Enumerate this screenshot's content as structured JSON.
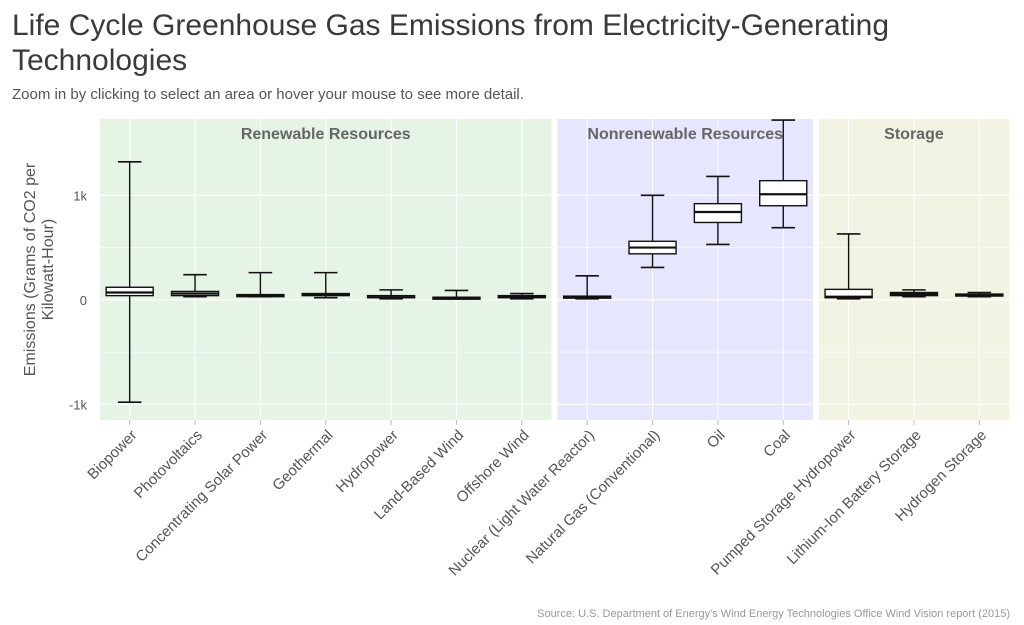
{
  "title": "Life Cycle Greenhouse Gas Emissions from Electricity-Generating Technologies",
  "subtitle": "Zoom in by clicking to select an area or hover your mouse to see more detail.",
  "source": "Source: U.S. Department of Energy's Wind Energy Technologies Office Wind Vision report (2015)",
  "colors": {
    "renewable": "#e5f4e5",
    "nonrenewable": "#e6e6ff",
    "storage": "#f3f3e4",
    "box_fill": "#ffffff",
    "box_stroke": "#111111"
  },
  "chart_data": {
    "type": "boxplot",
    "ylabel": "Emissions (Grams of CO2 per Kilowatt-Hour)",
    "ylim": [
      -1150,
      1730
    ],
    "yticks": [
      -1000,
      0,
      1000
    ],
    "ytick_labels": [
      "-1k",
      "0",
      "1k"
    ],
    "grid": true,
    "groups": [
      {
        "name": "Renewable Resources",
        "color_key": "renewable",
        "start": 0,
        "end": 6
      },
      {
        "name": "Nonrenewable Resources",
        "color_key": "nonrenewable",
        "start": 7,
        "end": 10
      },
      {
        "name": "Storage",
        "color_key": "storage",
        "start": 11,
        "end": 13
      }
    ],
    "categories": [
      "Biopower",
      "Photovoltaics",
      "Concentrating Solar Power",
      "Geothermal",
      "Hydropower",
      "Land-Based Wind",
      "Offshore Wind",
      "Nuclear (Light Water Reactor)",
      "Natural Gas (Conventional)",
      "Oil",
      "Coal",
      "Pumped Storage Hydropower",
      "Lithium-Ion Battery Storage",
      "Hydrogen Storage"
    ],
    "boxes": [
      {
        "min": -980,
        "q1": 40,
        "median": 70,
        "q3": 120,
        "max": 1320
      },
      {
        "min": 30,
        "q1": 40,
        "median": 60,
        "q3": 80,
        "max": 240
      },
      {
        "min": 30,
        "q1": 30,
        "median": 40,
        "q3": 50,
        "max": 260
      },
      {
        "min": 20,
        "q1": 40,
        "median": 50,
        "q3": 60,
        "max": 260
      },
      {
        "min": 10,
        "q1": 20,
        "median": 25,
        "q3": 40,
        "max": 95
      },
      {
        "min": 10,
        "q1": 15,
        "median": 20,
        "q3": 25,
        "max": 90
      },
      {
        "min": 10,
        "q1": 20,
        "median": 30,
        "q3": 40,
        "max": 60
      },
      {
        "min": 10,
        "q1": 20,
        "median": 25,
        "q3": 35,
        "max": 230
      },
      {
        "min": 310,
        "q1": 440,
        "median": 500,
        "q3": 560,
        "max": 1000
      },
      {
        "min": 530,
        "q1": 740,
        "median": 840,
        "q3": 920,
        "max": 1180
      },
      {
        "min": 690,
        "q1": 900,
        "median": 1010,
        "q3": 1140,
        "max": 1720
      },
      {
        "min": 10,
        "q1": 20,
        "median": 30,
        "q3": 100,
        "max": 630
      },
      {
        "min": 30,
        "q1": 40,
        "median": 55,
        "q3": 70,
        "max": 95
      },
      {
        "min": 30,
        "q1": 40,
        "median": 45,
        "q3": 55,
        "max": 70
      }
    ]
  }
}
